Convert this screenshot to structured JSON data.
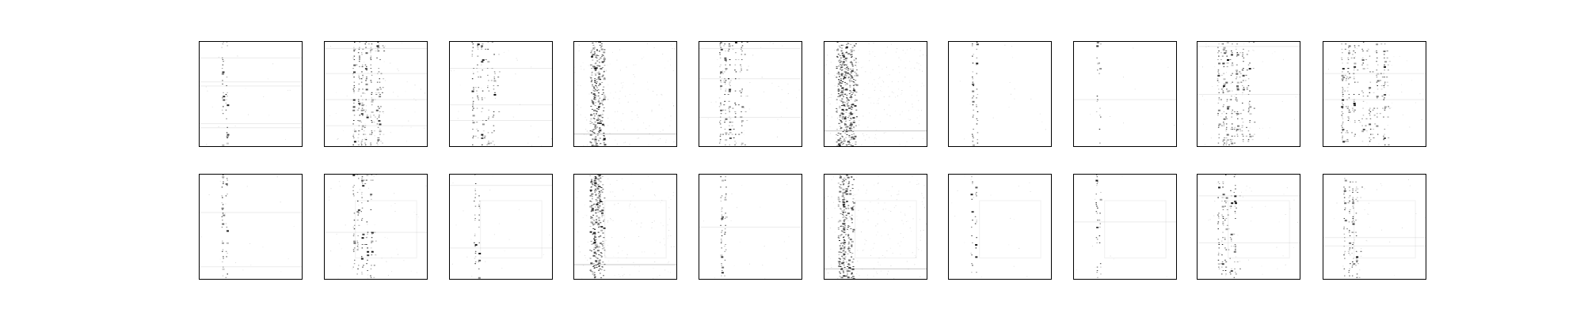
{
  "figure": {
    "rows": 2,
    "cols": 10,
    "panel_labels": [],
    "ink_color": "#000000",
    "background_color": "#ffffff"
  },
  "panels": [
    {
      "row": 0,
      "col": 0,
      "style": "column",
      "cols": [
        0.22,
        0.26
      ],
      "density": 0.35,
      "bands": [
        0.15,
        0.38,
        0.42,
        0.78,
        0.82
      ],
      "noise": 0.02
    },
    {
      "row": 0,
      "col": 1,
      "style": "multi",
      "cols": [
        0.28,
        0.33,
        0.36,
        0.4,
        0.45,
        0.51,
        0.53
      ],
      "density": 0.55,
      "bands": [
        0.06,
        0.3,
        0.55,
        0.8
      ],
      "noise": 0.06
    },
    {
      "row": 0,
      "col": 2,
      "style": "multi",
      "cols": [
        0.22,
        0.27,
        0.31,
        0.37,
        0.43
      ],
      "density": 0.35,
      "bands": [
        0.25,
        0.6,
        0.75
      ],
      "noise": 0.03
    },
    {
      "row": 0,
      "col": 3,
      "style": "smear",
      "cols": [
        0.18,
        0.22,
        0.26
      ],
      "density": 0.7,
      "bands": [
        0.88
      ],
      "noise": 0.18
    },
    {
      "row": 0,
      "col": 4,
      "style": "multi",
      "cols": [
        0.2,
        0.25,
        0.29,
        0.35,
        0.41
      ],
      "density": 0.45,
      "bands": [
        0.06,
        0.35,
        0.72
      ],
      "noise": 0.04
    },
    {
      "row": 0,
      "col": 5,
      "style": "smear",
      "cols": [
        0.14,
        0.18,
        0.23,
        0.28
      ],
      "density": 0.7,
      "bands": [
        0.85
      ],
      "noise": 0.25
    },
    {
      "row": 0,
      "col": 6,
      "style": "column",
      "cols": [
        0.23,
        0.27
      ],
      "density": 0.35,
      "bands": [],
      "noise": 0.02
    },
    {
      "row": 0,
      "col": 7,
      "style": "column",
      "cols": [
        0.22,
        0.25
      ],
      "density": 0.2,
      "bands": [
        0.55
      ],
      "noise": 0.01
    },
    {
      "row": 0,
      "col": 8,
      "style": "multi",
      "cols": [
        0.2,
        0.25,
        0.28,
        0.33,
        0.38,
        0.44,
        0.5
      ],
      "density": 0.5,
      "bands": [
        0.04,
        0.5
      ],
      "noise": 0.05
    },
    {
      "row": 0,
      "col": 9,
      "style": "multi",
      "cols": [
        0.18,
        0.24,
        0.3,
        0.38,
        0.45,
        0.52,
        0.59
      ],
      "density": 0.45,
      "bands": [
        0.3,
        0.55
      ],
      "noise": 0.04
    },
    {
      "row": 1,
      "col": 0,
      "style": "column",
      "cols": [
        0.22,
        0.26
      ],
      "density": 0.4,
      "bands": [
        0.36,
        0.88
      ],
      "noise": 0.02
    },
    {
      "row": 1,
      "col": 1,
      "style": "multi",
      "cols": [
        0.28,
        0.32,
        0.36,
        0.41,
        0.45
      ],
      "density": 0.3,
      "bands": [
        0.55
      ],
      "noise": 0.05,
      "frame": true
    },
    {
      "row": 1,
      "col": 2,
      "style": "column",
      "cols": [
        0.24,
        0.28
      ],
      "density": 0.3,
      "bands": [
        0.1,
        0.7
      ],
      "noise": 0.02,
      "frame": true
    },
    {
      "row": 1,
      "col": 3,
      "style": "smear",
      "cols": [
        0.18,
        0.22,
        0.26
      ],
      "density": 0.7,
      "bands": [
        0.86
      ],
      "noise": 0.15,
      "frame": true
    },
    {
      "row": 1,
      "col": 4,
      "style": "column",
      "cols": [
        0.21,
        0.25
      ],
      "density": 0.45,
      "bands": [
        0.5
      ],
      "noise": 0.02
    },
    {
      "row": 1,
      "col": 5,
      "style": "smear",
      "cols": [
        0.16,
        0.2,
        0.25
      ],
      "density": 0.65,
      "bands": [
        0.9
      ],
      "noise": 0.22,
      "frame": true
    },
    {
      "row": 1,
      "col": 6,
      "style": "column",
      "cols": [
        0.22,
        0.26
      ],
      "density": 0.4,
      "bands": [],
      "noise": 0.02,
      "frame": true
    },
    {
      "row": 1,
      "col": 7,
      "style": "column",
      "cols": [
        0.22,
        0.25
      ],
      "density": 0.3,
      "bands": [
        0.45
      ],
      "noise": 0.01,
      "frame": true
    },
    {
      "row": 1,
      "col": 8,
      "style": "multi",
      "cols": [
        0.2,
        0.24,
        0.27,
        0.32,
        0.36
      ],
      "density": 0.4,
      "bands": [
        0.2,
        0.65
      ],
      "noise": 0.04,
      "frame": true
    },
    {
      "row": 1,
      "col": 9,
      "style": "multi",
      "cols": [
        0.2,
        0.25,
        0.28,
        0.32
      ],
      "density": 0.4,
      "bands": [
        0.6,
        0.68
      ],
      "noise": 0.04,
      "frame": true
    }
  ]
}
